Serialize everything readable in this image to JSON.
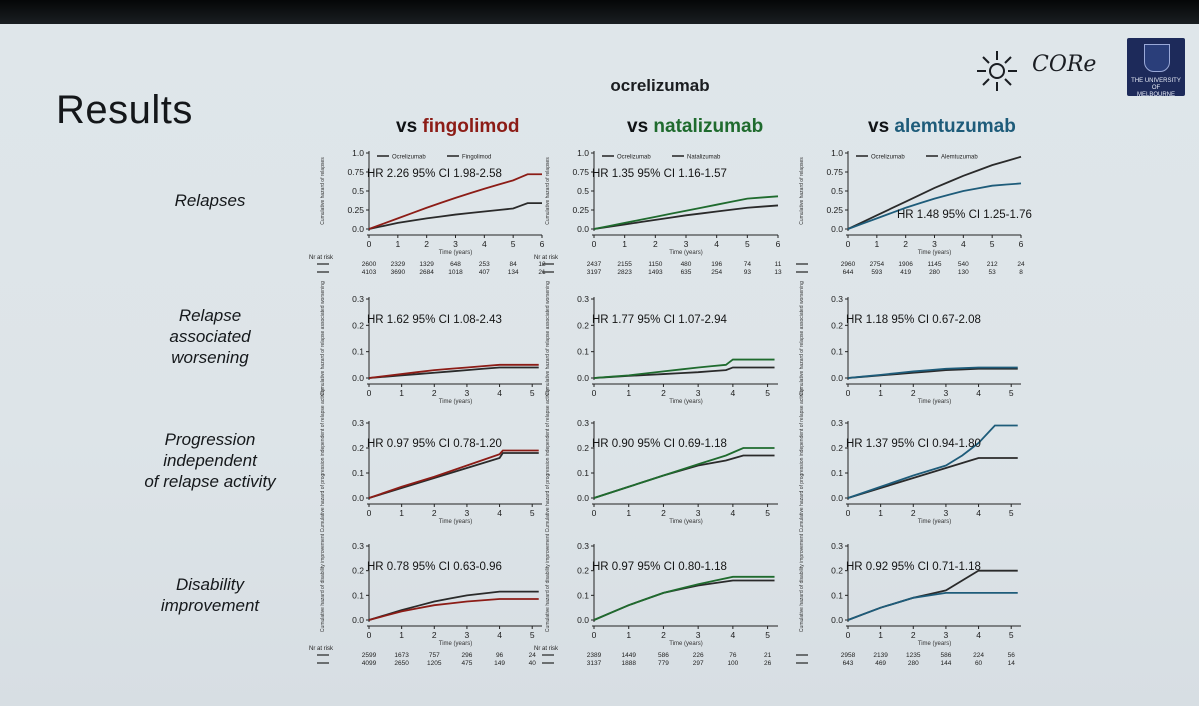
{
  "slide": {
    "title": "Results",
    "drug": "ocrelizumab",
    "logos": {
      "core": "CORe",
      "university": [
        "THE UNIVERSITY OF",
        "MELBOURNE"
      ]
    },
    "columns": [
      {
        "vs": "vs",
        "name": "fingolimod",
        "color": "#8c1c16"
      },
      {
        "vs": "vs",
        "name": "natalizumab",
        "color": "#1f6b2e"
      },
      {
        "vs": "vs",
        "name": "alemtuzumab",
        "color": "#1e5c7a"
      }
    ],
    "rows": [
      {
        "label": [
          "Relapses"
        ]
      },
      {
        "label": [
          "Relapse",
          "associated",
          "worsening"
        ]
      },
      {
        "label": [
          "Progression",
          "independent",
          "of relapse activity"
        ]
      },
      {
        "label": [
          "Disability",
          "improvement"
        ]
      }
    ]
  },
  "chart_data": [
    {
      "type": "line",
      "row": "Relapses",
      "column": "fingolimod",
      "legend": [
        "Ocrelizumab",
        "Fingolimod"
      ],
      "ylabel": "Cumulative hazard of relapses",
      "xlabel": "Time (years)",
      "ylim": [
        0,
        1.0
      ],
      "yticks": [
        "0.0",
        "0.25",
        "0.5",
        "0.75",
        "1.0"
      ],
      "xlim": [
        0,
        6
      ],
      "xticks": [
        "0",
        "1",
        "2",
        "3",
        "4",
        "5",
        "6"
      ],
      "annotation": "HR 2.26 95% CI 1.98-2.58",
      "annotation_pos": "top",
      "series": [
        {
          "name": "Ocrelizumab",
          "color": "#2a2a2a",
          "x": [
            0,
            1,
            2,
            3,
            4,
            5,
            5.5,
            6
          ],
          "y": [
            0,
            0.08,
            0.14,
            0.19,
            0.23,
            0.27,
            0.34,
            0.34
          ]
        },
        {
          "name": "Fingolimod",
          "color": "#8c1c16",
          "x": [
            0,
            1,
            2,
            3,
            4,
            5,
            5.5,
            6
          ],
          "y": [
            0,
            0.14,
            0.28,
            0.41,
            0.53,
            0.64,
            0.72,
            0.72
          ]
        }
      ],
      "risk": {
        "label": "Nr at risk",
        "rows": [
          [
            "2600",
            "2329",
            "1329",
            "648",
            "253",
            "84",
            "12"
          ],
          [
            "4103",
            "3690",
            "2684",
            "1018",
            "407",
            "134",
            "21"
          ]
        ]
      }
    },
    {
      "type": "line",
      "row": "Relapses",
      "column": "natalizumab",
      "legend": [
        "Ocrelizumab",
        "Natalizumab"
      ],
      "ylabel": "Cumulative hazard of relapses",
      "xlabel": "Time (years)",
      "ylim": [
        0,
        1.0
      ],
      "yticks": [
        "0.0",
        "0.25",
        "0.5",
        "0.75",
        "1.0"
      ],
      "xlim": [
        0,
        6
      ],
      "xticks": [
        "0",
        "1",
        "2",
        "3",
        "4",
        "5",
        "6"
      ],
      "annotation": "HR 1.35 95% CI 1.16-1.57",
      "annotation_pos": "top",
      "series": [
        {
          "name": "Ocrelizumab",
          "color": "#2a2a2a",
          "x": [
            0,
            1,
            2,
            3,
            4,
            5,
            6
          ],
          "y": [
            0,
            0.06,
            0.12,
            0.18,
            0.23,
            0.28,
            0.31
          ]
        },
        {
          "name": "Natalizumab",
          "color": "#1f6b2e",
          "x": [
            0,
            1,
            2,
            3,
            4,
            5,
            6
          ],
          "y": [
            0,
            0.08,
            0.16,
            0.24,
            0.32,
            0.4,
            0.43
          ]
        }
      ],
      "risk": {
        "label": "Nr at risk",
        "rows": [
          [
            "2437",
            "2155",
            "1150",
            "480",
            "196",
            "74",
            "11"
          ],
          [
            "3197",
            "2823",
            "1493",
            "635",
            "254",
            "93",
            "13"
          ]
        ]
      }
    },
    {
      "type": "line",
      "row": "Relapses",
      "column": "alemtuzumab",
      "legend": [
        "Ocrelizumab",
        "Alemtuzumab"
      ],
      "ylabel": "Cumulative hazard of relapses",
      "xlabel": "Time (years)",
      "ylim": [
        0,
        1.0
      ],
      "yticks": [
        "0.0",
        "0.25",
        "0.5",
        "0.75",
        "1.0"
      ],
      "xlim": [
        0,
        6
      ],
      "xticks": [
        "0",
        "1",
        "2",
        "3",
        "4",
        "5",
        "6"
      ],
      "annotation": "HR 1.48 95% CI 1.25-1.76",
      "annotation_pos": "bottom",
      "series": [
        {
          "name": "Ocrelizumab",
          "color": "#2a2a2a",
          "x": [
            0,
            1,
            2,
            3,
            4,
            5,
            6
          ],
          "y": [
            0,
            0.18,
            0.36,
            0.54,
            0.7,
            0.84,
            0.95
          ]
        },
        {
          "name": "Alemtuzumab",
          "color": "#1e5c7a",
          "x": [
            0,
            1,
            2,
            3,
            4,
            5,
            6
          ],
          "y": [
            0,
            0.14,
            0.28,
            0.4,
            0.5,
            0.57,
            0.6
          ]
        }
      ],
      "risk": {
        "label": "",
        "rows": [
          [
            "2960",
            "2754",
            "1906",
            "1145",
            "540",
            "212",
            "24"
          ],
          [
            "644",
            "593",
            "419",
            "280",
            "130",
            "53",
            "8"
          ]
        ]
      }
    },
    {
      "type": "line",
      "row": "Relapse associated worsening",
      "column": "fingolimod",
      "ylabel": "Cumulative hazard of relapse associated worsening",
      "xlabel": "Time (years)",
      "ylim": [
        0,
        0.3
      ],
      "yticks": [
        "0.0",
        "0.1",
        "0.2",
        "0.3"
      ],
      "xlim": [
        0,
        5.3
      ],
      "xticks": [
        "0",
        "1",
        "2",
        "3",
        "4",
        "5"
      ],
      "annotation": "HR 1.62 95% CI 1.08-2.43",
      "annotation_pos": "top",
      "series": [
        {
          "name": "Ocrelizumab",
          "color": "#2a2a2a",
          "x": [
            0,
            1,
            2,
            3,
            4,
            5.2
          ],
          "y": [
            0,
            0.01,
            0.02,
            0.03,
            0.04,
            0.04
          ]
        },
        {
          "name": "Fingolimod",
          "color": "#8c1c16",
          "x": [
            0,
            1,
            2,
            3,
            4,
            5.2
          ],
          "y": [
            0,
            0.015,
            0.03,
            0.04,
            0.05,
            0.05
          ]
        }
      ]
    },
    {
      "type": "line",
      "row": "Relapse associated worsening",
      "column": "natalizumab",
      "ylabel": "Cumulative hazard of relapse associated worsening",
      "xlabel": "Time (years)",
      "ylim": [
        0,
        0.3
      ],
      "yticks": [
        "0.0",
        "0.1",
        "0.2",
        "0.3"
      ],
      "xlim": [
        0,
        5.3
      ],
      "xticks": [
        "0",
        "1",
        "2",
        "3",
        "4",
        "5"
      ],
      "annotation": "HR 1.77 95% CI 1.07-2.94",
      "annotation_pos": "top",
      "series": [
        {
          "name": "Ocrelizumab",
          "color": "#2a2a2a",
          "x": [
            0,
            1,
            2,
            3,
            3.8,
            4,
            5.2
          ],
          "y": [
            0,
            0.008,
            0.015,
            0.022,
            0.03,
            0.04,
            0.04
          ]
        },
        {
          "name": "Natalizumab",
          "color": "#1f6b2e",
          "x": [
            0,
            1,
            2,
            3,
            3.8,
            4,
            5.2
          ],
          "y": [
            0,
            0.01,
            0.025,
            0.04,
            0.05,
            0.07,
            0.07
          ]
        }
      ]
    },
    {
      "type": "line",
      "row": "Relapse associated worsening",
      "column": "alemtuzumab",
      "ylabel": "Cumulative hazard of relapse associated worsening",
      "xlabel": "Time (years)",
      "ylim": [
        0,
        0.3
      ],
      "yticks": [
        "0.0",
        "0.1",
        "0.2",
        "0.3"
      ],
      "xlim": [
        0,
        5.3
      ],
      "xticks": [
        "0",
        "1",
        "2",
        "3",
        "4",
        "5"
      ],
      "annotation": "HR 1.18 95% CI 0.67-2.08",
      "annotation_pos": "top",
      "series": [
        {
          "name": "Ocrelizumab",
          "color": "#2a2a2a",
          "x": [
            0,
            1,
            2,
            3,
            4,
            5.2
          ],
          "y": [
            0,
            0.01,
            0.02,
            0.03,
            0.035,
            0.035
          ]
        },
        {
          "name": "Alemtuzumab",
          "color": "#1e5c7a",
          "x": [
            0,
            1,
            2,
            3,
            4,
            5.2
          ],
          "y": [
            0,
            0.012,
            0.025,
            0.035,
            0.04,
            0.04
          ]
        }
      ]
    },
    {
      "type": "line",
      "row": "Progression independent of relapse activity",
      "column": "fingolimod",
      "ylabel": "Cumulative hazard of progression independent of relapse activity",
      "xlabel": "Time (years)",
      "ylim": [
        0,
        0.3
      ],
      "yticks": [
        "0.0",
        "0.1",
        "0.2",
        "0.3"
      ],
      "xlim": [
        0,
        5.3
      ],
      "xticks": [
        "0",
        "1",
        "2",
        "3",
        "4",
        "5"
      ],
      "annotation": "HR 0.97 95% CI 0.78-1.20",
      "annotation_pos": "top",
      "series": [
        {
          "name": "Ocrelizumab",
          "color": "#2a2a2a",
          "x": [
            0,
            1,
            2,
            3,
            4,
            4.1,
            5.2
          ],
          "y": [
            0,
            0.04,
            0.08,
            0.12,
            0.16,
            0.18,
            0.18
          ]
        },
        {
          "name": "Fingolimod",
          "color": "#8c1c16",
          "x": [
            0,
            1,
            2,
            3,
            4,
            4.1,
            5.2
          ],
          "y": [
            0,
            0.045,
            0.085,
            0.13,
            0.175,
            0.19,
            0.19
          ]
        }
      ]
    },
    {
      "type": "line",
      "row": "Progression independent of relapse activity",
      "column": "natalizumab",
      "ylabel": "Cumulative hazard of progression independent of relapse activity",
      "xlabel": "Time (years)",
      "ylim": [
        0,
        0.3
      ],
      "yticks": [
        "0.0",
        "0.1",
        "0.2",
        "0.3"
      ],
      "xlim": [
        0,
        5.3
      ],
      "xticks": [
        "0",
        "1",
        "2",
        "3",
        "4",
        "5"
      ],
      "annotation": "HR 0.90 95% CI 0.69-1.18",
      "annotation_pos": "top",
      "series": [
        {
          "name": "Ocrelizumab",
          "color": "#2a2a2a",
          "x": [
            0,
            1,
            2,
            3,
            3.8,
            4.3,
            5.2
          ],
          "y": [
            0,
            0.045,
            0.09,
            0.13,
            0.15,
            0.17,
            0.17
          ]
        },
        {
          "name": "Natalizumab",
          "color": "#1f6b2e",
          "x": [
            0,
            1,
            2,
            3,
            3.8,
            4.3,
            5.2
          ],
          "y": [
            0,
            0.045,
            0.09,
            0.135,
            0.17,
            0.2,
            0.2
          ]
        }
      ]
    },
    {
      "type": "line",
      "row": "Progression independent of relapse activity",
      "column": "alemtuzumab",
      "ylabel": "Cumulative hazard of progression independent of relapse activity",
      "xlabel": "Time (years)",
      "ylim": [
        0,
        0.3
      ],
      "yticks": [
        "0.0",
        "0.1",
        "0.2",
        "0.3"
      ],
      "xlim": [
        0,
        5.3
      ],
      "xticks": [
        "0",
        "1",
        "2",
        "3",
        "4",
        "5"
      ],
      "annotation": "HR 1.37 95% CI 0.94-1.80",
      "annotation_pos": "top",
      "series": [
        {
          "name": "Ocrelizumab",
          "color": "#2a2a2a",
          "x": [
            0,
            1,
            2,
            3,
            3.5,
            4,
            4.5,
            5.2
          ],
          "y": [
            0,
            0.04,
            0.08,
            0.12,
            0.14,
            0.16,
            0.16,
            0.16
          ]
        },
        {
          "name": "Alemtuzumab",
          "color": "#1e5c7a",
          "x": [
            0,
            1,
            2,
            3,
            3.5,
            4,
            4.5,
            5.2
          ],
          "y": [
            0,
            0.045,
            0.09,
            0.13,
            0.17,
            0.22,
            0.29,
            0.29
          ]
        }
      ]
    },
    {
      "type": "line",
      "row": "Disability improvement",
      "column": "fingolimod",
      "ylabel": "Cumulative hazard of disability improvement",
      "xlabel": "Time (years)",
      "ylim": [
        0,
        0.3
      ],
      "yticks": [
        "0.0",
        "0.1",
        "0.2",
        "0.3"
      ],
      "xlim": [
        0,
        5.3
      ],
      "xticks": [
        "0",
        "1",
        "2",
        "3",
        "4",
        "5"
      ],
      "annotation": "HR 0.78 95% CI 0.63-0.96",
      "annotation_pos": "top",
      "series": [
        {
          "name": "Ocrelizumab",
          "color": "#2a2a2a",
          "x": [
            0,
            1,
            2,
            3,
            4,
            5.2
          ],
          "y": [
            0,
            0.04,
            0.075,
            0.1,
            0.115,
            0.115
          ]
        },
        {
          "name": "Fingolimod",
          "color": "#8c1c16",
          "x": [
            0,
            1,
            2,
            3,
            4,
            5.2
          ],
          "y": [
            0,
            0.035,
            0.06,
            0.075,
            0.085,
            0.085
          ]
        }
      ],
      "risk": {
        "label": "Nr at risk",
        "rows": [
          [
            "2599",
            "1673",
            "757",
            "296",
            "96",
            "24"
          ],
          [
            "4099",
            "2650",
            "1205",
            "475",
            "149",
            "40"
          ]
        ]
      }
    },
    {
      "type": "line",
      "row": "Disability improvement",
      "column": "natalizumab",
      "ylabel": "Cumulative hazard of disability improvement",
      "xlabel": "Time (years)",
      "ylim": [
        0,
        0.3
      ],
      "yticks": [
        "0.0",
        "0.1",
        "0.2",
        "0.3"
      ],
      "xlim": [
        0,
        5.3
      ],
      "xticks": [
        "0",
        "1",
        "2",
        "3",
        "4",
        "5"
      ],
      "annotation": "HR 0.97 95% CI 0.80-1.18",
      "annotation_pos": "top",
      "series": [
        {
          "name": "Ocrelizumab",
          "color": "#2a2a2a",
          "x": [
            0,
            1,
            2,
            3,
            4,
            5.2
          ],
          "y": [
            0,
            0.06,
            0.11,
            0.14,
            0.16,
            0.16
          ]
        },
        {
          "name": "Natalizumab",
          "color": "#1f6b2e",
          "x": [
            0,
            1,
            2,
            3,
            4,
            5.2
          ],
          "y": [
            0,
            0.06,
            0.11,
            0.145,
            0.175,
            0.175
          ]
        }
      ],
      "risk": {
        "label": "Nr at risk",
        "rows": [
          [
            "2389",
            "1449",
            "586",
            "226",
            "76",
            "21"
          ],
          [
            "3137",
            "1888",
            "779",
            "297",
            "100",
            "26"
          ]
        ]
      }
    },
    {
      "type": "line",
      "row": "Disability improvement",
      "column": "alemtuzumab",
      "ylabel": "Cumulative hazard of disability improvement",
      "xlabel": "Time (years)",
      "ylim": [
        0,
        0.3
      ],
      "yticks": [
        "0.0",
        "0.1",
        "0.2",
        "0.3"
      ],
      "xlim": [
        0,
        5.3
      ],
      "xticks": [
        "0",
        "1",
        "2",
        "3",
        "4",
        "5"
      ],
      "annotation": "HR 0.92 95% CI 0.71-1.18",
      "annotation_pos": "top",
      "series": [
        {
          "name": "Ocrelizumab",
          "color": "#2a2a2a",
          "x": [
            0,
            1,
            2,
            3,
            4,
            5.2
          ],
          "y": [
            0,
            0.05,
            0.09,
            0.12,
            0.2,
            0.2
          ]
        },
        {
          "name": "Alemtuzumab",
          "color": "#1e5c7a",
          "x": [
            0,
            1,
            2,
            3,
            4,
            5.2
          ],
          "y": [
            0,
            0.05,
            0.09,
            0.11,
            0.11,
            0.11
          ]
        }
      ],
      "risk": {
        "label": "",
        "rows": [
          [
            "2958",
            "2139",
            "1235",
            "586",
            "224",
            "56"
          ],
          [
            "643",
            "469",
            "280",
            "144",
            "60",
            "14"
          ]
        ]
      }
    }
  ]
}
